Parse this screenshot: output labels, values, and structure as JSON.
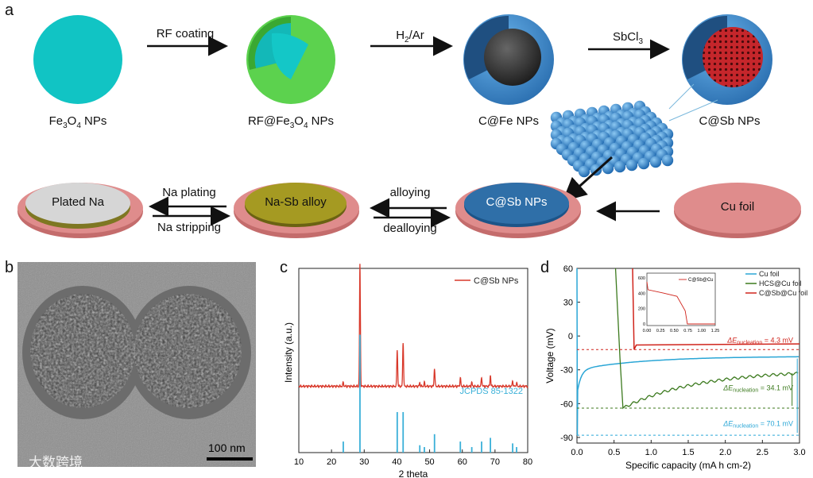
{
  "panel_labels": {
    "a": "a",
    "b": "b",
    "c": "c",
    "d": "d"
  },
  "panel_a": {
    "steps": [
      "RF coating",
      "H2/Ar",
      "SbCl3"
    ],
    "captions": [
      "Fe3O4 NPs",
      "RF@Fe3O4 NPs",
      "C@Fe NPs",
      "C@Sb NPs"
    ],
    "bottom": {
      "cu_foil": "Cu foil",
      "csb": "C@Sb NPs",
      "alloy": "Na-Sb alloy",
      "plated": "Plated Na",
      "alloying": "alloying",
      "dealloying": "dealloying",
      "plating": "Na plating",
      "stripping": "Na stripping"
    },
    "colors": {
      "fe3o4": "#11c4c4",
      "rf": "#5cd24e",
      "carbon": "#3a86c8",
      "sb": "#c0262a",
      "foil": "#dd8a8a",
      "alloy": "#a59a22",
      "na": "#d6d6d6"
    }
  },
  "panel_b": {
    "scale_bar": "100 nm"
  },
  "panel_c": {
    "chart_data": {
      "type": "line",
      "title": "",
      "xlabel": "2 theta",
      "ylabel": "Intensity (a.u.)",
      "xlim": [
        10,
        80
      ],
      "xticks": [
        10,
        20,
        30,
        40,
        50,
        60,
        70,
        80
      ],
      "series": [
        {
          "name": "C@Sb NPs",
          "color": "#d8382a",
          "baseline": 0.36,
          "peaks": [
            [
              23.6,
              0.02
            ],
            [
              28.7,
              0.66
            ],
            [
              40.1,
              0.2
            ],
            [
              41.9,
              0.24
            ],
            [
              47.0,
              0.02
            ],
            [
              48.4,
              0.02
            ],
            [
              51.5,
              0.1
            ],
            [
              59.4,
              0.045
            ],
            [
              62.9,
              0.02
            ],
            [
              65.9,
              0.05
            ],
            [
              68.6,
              0.06
            ],
            [
              75.4,
              0.03
            ],
            [
              76.6,
              0.02
            ]
          ]
        }
      ],
      "reference": {
        "name": "JCPDS 85-1322",
        "color": "#3ab0d8",
        "sticks": [
          [
            23.6,
            0.06
          ],
          [
            28.7,
            0.64
          ],
          [
            40.1,
            0.22
          ],
          [
            41.9,
            0.22
          ],
          [
            47.0,
            0.04
          ],
          [
            48.4,
            0.03
          ],
          [
            51.5,
            0.1
          ],
          [
            59.4,
            0.06
          ],
          [
            62.9,
            0.03
          ],
          [
            65.9,
            0.06
          ],
          [
            68.6,
            0.08
          ],
          [
            75.4,
            0.05
          ],
          [
            76.6,
            0.03
          ]
        ]
      }
    }
  },
  "panel_d": {
    "chart_data": {
      "type": "line",
      "xlabel": "Specific capacity (mA h cm-2)",
      "ylabel": "Voltage (mV)",
      "xlim": [
        0,
        3.0
      ],
      "ylim": [
        -95,
        60
      ],
      "xticks": [
        "0.0",
        "0.5",
        "1.0",
        "1.5",
        "2.0",
        "2.5",
        "3.0"
      ],
      "yticks": [
        "60",
        "30",
        "0",
        "-30",
        "-60",
        "-90"
      ],
      "series": [
        {
          "name": "Cu foil",
          "color": "#2aa6d6"
        },
        {
          "name": "HCS@Cu foil",
          "color": "#3c7a1e"
        },
        {
          "name": "C@Sb@Cu foil",
          "color": "#d0241c"
        }
      ],
      "annotations": [
        {
          "symbol": "ΔE",
          "sub": "nucleation",
          "value": "= 4.3 mV",
          "color": "#d0241c"
        },
        {
          "symbol": "ΔE",
          "sub": "nucleation",
          "value": "= 34.1 mV",
          "color": "#3c7a1e"
        },
        {
          "symbol": "ΔE",
          "sub": "nucleation",
          "value": "= 70.1 mV",
          "color": "#2aa6d6"
        }
      ],
      "inset": {
        "legend": "C@Sb@Cu",
        "xticks": [
          "0.00",
          "0.25",
          "0.50",
          "0.75",
          "1.00",
          "1.25"
        ],
        "yticks": [
          "600",
          "400",
          "200",
          "0"
        ]
      }
    }
  },
  "watermark": "大数跨境"
}
